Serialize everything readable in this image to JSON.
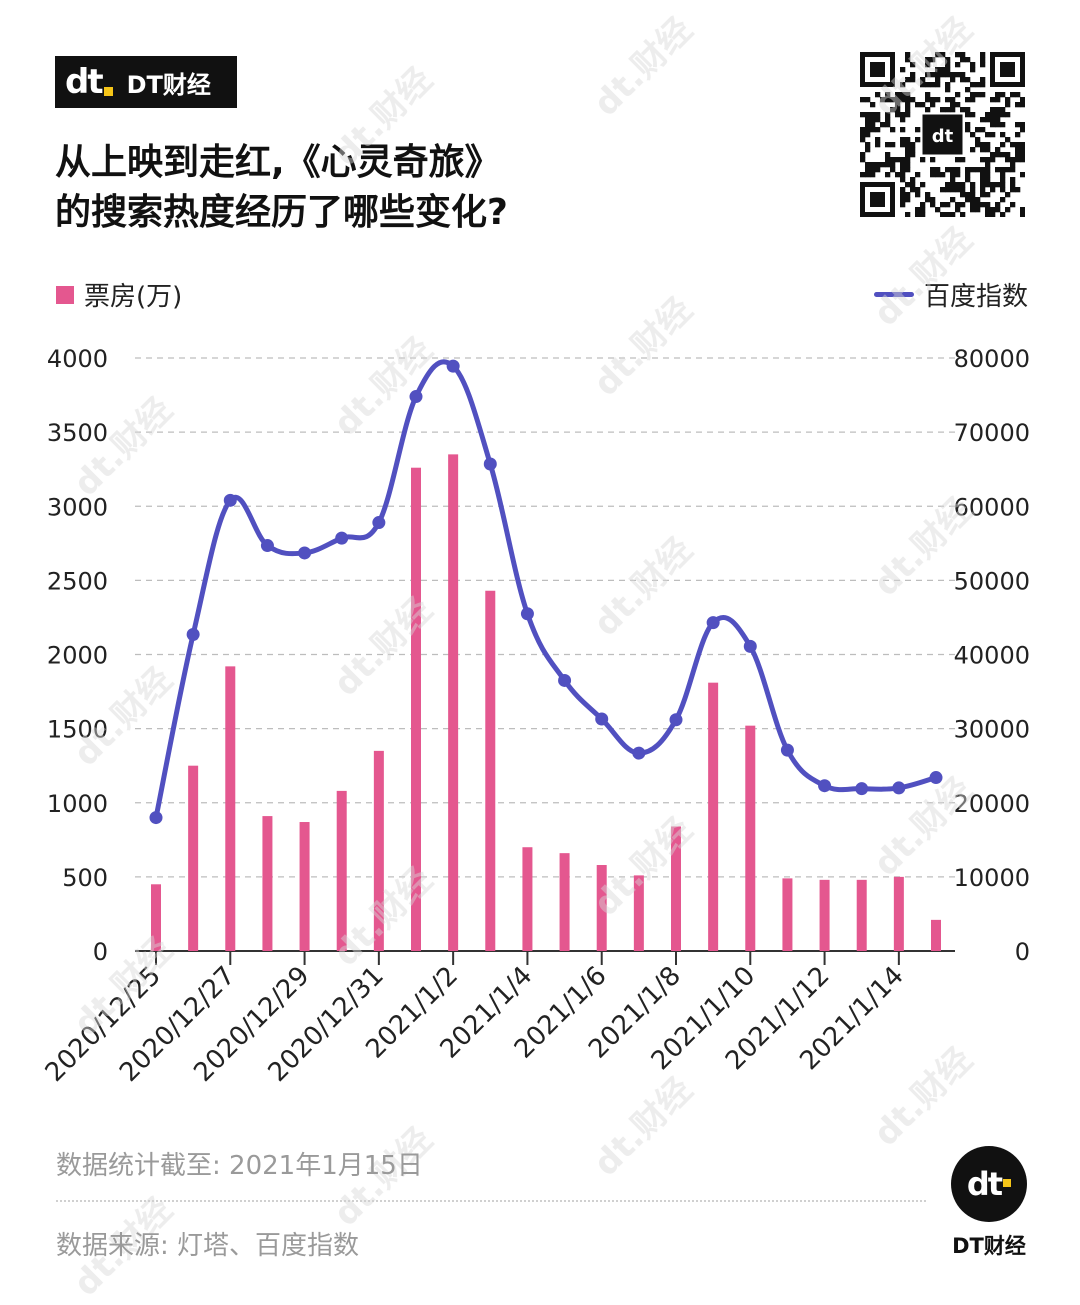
{
  "brand": {
    "logo_text": "dt",
    "name": "DT财经"
  },
  "title_lines": [
    "从上映到走红,《心灵奇旅》",
    "的搜索热度经历了哪些变化?"
  ],
  "watermark_text": "dt.财经",
  "footnotes": {
    "cutoff": "数据统计截至: 2021年1月15日",
    "source": "数据来源: 灯塔、百度指数"
  },
  "colors": {
    "bar": "#e4578f",
    "line": "#5150c0",
    "grid": "#bdbdbd",
    "text": "#222222"
  },
  "chart_data": {
    "type": "bar+line",
    "categories": [
      "2020/12/25",
      "2020/12/26",
      "2020/12/27",
      "2020/12/28",
      "2020/12/29",
      "2020/12/30",
      "2020/12/31",
      "2021/1/1",
      "2021/1/2",
      "2021/1/3",
      "2021/1/4",
      "2021/1/5",
      "2021/1/6",
      "2021/1/7",
      "2021/1/8",
      "2021/1/9",
      "2021/1/10",
      "2021/1/11",
      "2021/1/12",
      "2021/1/13",
      "2021/1/14",
      "2021/1/15"
    ],
    "x_tick_labels": [
      "2020/12/25",
      "2020/12/27",
      "2020/12/29",
      "2020/12/31",
      "2021/1/2",
      "2021/1/4",
      "2021/1/6",
      "2021/1/8",
      "2021/1/10",
      "2021/1/12",
      "2021/1/14"
    ],
    "series": [
      {
        "name": "票房(万)",
        "type": "bar",
        "axis": "left",
        "values": [
          450,
          1250,
          1920,
          910,
          870,
          1080,
          1350,
          3260,
          3350,
          2430,
          700,
          660,
          580,
          510,
          840,
          1810,
          1520,
          490,
          480,
          480,
          500,
          210
        ]
      },
      {
        "name": "百度指数",
        "type": "line",
        "axis": "right",
        "values": [
          18000,
          42700,
          60800,
          54700,
          53700,
          55700,
          57800,
          74800,
          78900,
          65700,
          45500,
          36500,
          31300,
          26700,
          31200,
          44300,
          41100,
          27100,
          22300,
          21900,
          22000,
          23400
        ]
      }
    ],
    "y_left": {
      "min": 0,
      "max": 4000,
      "ticks": [
        0,
        500,
        1000,
        1500,
        2000,
        2500,
        3000,
        3500,
        4000
      ]
    },
    "y_right": {
      "min": 0,
      "max": 80000,
      "ticks": [
        0,
        10000,
        20000,
        30000,
        40000,
        50000,
        60000,
        70000,
        80000
      ]
    },
    "grid": true,
    "legend": {
      "left": "票房(万)",
      "right": "百度指数"
    }
  }
}
